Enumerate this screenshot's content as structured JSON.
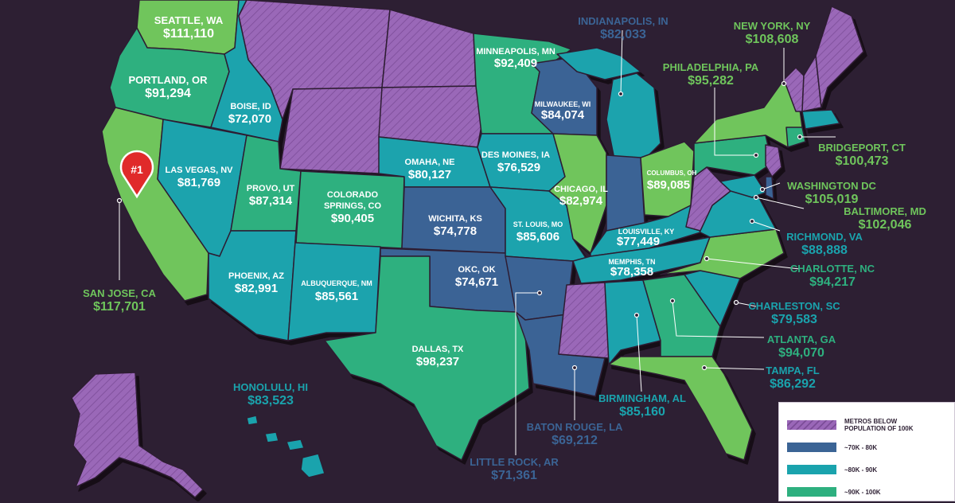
{
  "pin": {
    "rank_label": "#1"
  },
  "colors": {
    "background": "#2d1f33",
    "metros_below_100k": "#9a67b8",
    "range_70_80k": "#3b6495",
    "range_80_90k": "#1aa3ad",
    "range_90_100k": "#2eb07f",
    "range_100k_plus": "#6fc55c",
    "pin": "#e02a2a"
  },
  "callouts": {
    "seattle": {
      "city": "SEATTLE, WA",
      "salary": "$111,110"
    },
    "portland": {
      "city": "PORTLAND, OR",
      "salary": "$91,294"
    },
    "san_jose": {
      "city": "SAN JOSE, CA",
      "salary": "$117,701"
    },
    "honolulu": {
      "city": "HONOLULU, HI",
      "salary": "$83,523"
    },
    "indianapolis": {
      "city": "INDIANAPOLIS, IN",
      "salary": "$82,033"
    },
    "new_york": {
      "city": "NEW YORK, NY",
      "salary": "$108,608"
    },
    "philadelphia": {
      "city": "PHILADELPHIA, PA",
      "salary": "$95,282"
    },
    "bridgeport": {
      "city": "BRIDGEPORT, CT",
      "salary": "$100,473"
    },
    "washington_dc": {
      "city": "WASHINGTON DC",
      "salary": "$105,019"
    },
    "baltimore": {
      "city": "BALTIMORE, MD",
      "salary": "$102,046"
    },
    "richmond": {
      "city": "RICHMOND, VA",
      "salary": "$88,888"
    },
    "charlotte": {
      "city": "CHARLOTTE, NC",
      "salary": "$94,217"
    },
    "charleston": {
      "city": "CHARLESTON, SC",
      "salary": "$79,583"
    },
    "atlanta": {
      "city": "ATLANTA, GA",
      "salary": "$94,070"
    },
    "tampa": {
      "city": "TAMPA, FL",
      "salary": "$86,292"
    },
    "birmingham": {
      "city": "BIRMINGHAM, AL",
      "salary": "$85,160"
    },
    "baton_rouge": {
      "city": "BATON ROUGE, LA",
      "salary": "$69,212"
    },
    "little_rock": {
      "city": "LITTLE ROCK, AR",
      "salary": "$71,361"
    }
  },
  "inner_labels": {
    "boise": {
      "city": "BOISE, ID",
      "salary": "$72,070"
    },
    "las_vegas": {
      "city": "LAS VEGAS, NV",
      "salary": "$81,769"
    },
    "provo": {
      "city": "PROVO, UT",
      "salary": "$87,314"
    },
    "colorado_springs": {
      "city_line1": "COLORADO",
      "city_line2": "SPRINGS, CO",
      "salary": "$90,405"
    },
    "phoenix": {
      "city": "PHOENIX, AZ",
      "salary": "$82,991"
    },
    "albuquerque": {
      "city": "ALBUQUERQUE, NM",
      "salary": "$85,561"
    },
    "minneapolis": {
      "city": "MINNEAPOLIS, MN",
      "salary": "$92,409"
    },
    "omaha": {
      "city": "OMAHA, NE",
      "salary": "$80,127"
    },
    "wichita": {
      "city": "WICHITA, KS",
      "salary": "$74,778"
    },
    "okc": {
      "city": "OKC, OK",
      "salary": "$74,671"
    },
    "dallas": {
      "city": "DALLAS, TX",
      "salary": "$98,237"
    },
    "des_moines": {
      "city": "DES MOINES, IA",
      "salary": "$76,529"
    },
    "st_louis": {
      "city": "ST. LOUIS, MO",
      "salary": "$85,606"
    },
    "milwaukee": {
      "city": "MILWAUKEE, WI",
      "salary": "$84,074"
    },
    "chicago": {
      "city": "CHICAGO, IL",
      "salary": "$82,974"
    },
    "louisville": {
      "city": "LOUISVILLE, KY",
      "salary": "$77,449"
    },
    "memphis": {
      "city": "MEMPHIS, TN",
      "salary": "$78,358"
    },
    "columbus": {
      "city": "COLUMBUS, OH",
      "salary": "$89,085"
    }
  },
  "legend": {
    "items": [
      {
        "line1": "METROS BELOW",
        "line2": "POPULATION OF 100K",
        "color": "#9a67b8",
        "hatched": true
      },
      {
        "line1": "~70K - 80K",
        "line2": "",
        "color": "#3b6495",
        "hatched": false
      },
      {
        "line1": "~80K - 90K",
        "line2": "",
        "color": "#1aa3ad",
        "hatched": false
      },
      {
        "line1": "~90K - 100K",
        "line2": "",
        "color": "#2eb07f",
        "hatched": false
      }
    ]
  }
}
